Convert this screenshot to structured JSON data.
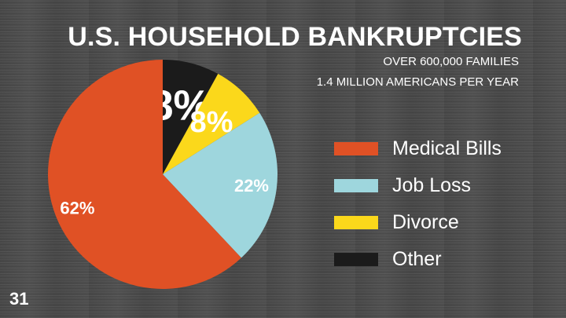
{
  "title": "U.S. HOUSEHOLD BANKRUPTCIES",
  "subtitle_lines": [
    "OVER 600,000 FAMILIES",
    "1.4 MILLION AMERICANS PER YEAR"
  ],
  "page_number": "31",
  "chart_data": {
    "type": "pie",
    "title": "U.S. HOUSEHOLD BANKRUPTCIES",
    "slices": [
      {
        "label": "Medical Bills",
        "value": 62,
        "data_label": "62%",
        "color": "#e05125"
      },
      {
        "label": "Job Loss",
        "value": 22,
        "data_label": "22%",
        "color": "#9ed6dd"
      },
      {
        "label": "Divorce",
        "value": 8,
        "data_label": "8%",
        "color": "#fbd81b"
      },
      {
        "label": "Other",
        "value": 8,
        "data_label": "8%",
        "color": "#1b1b1b"
      }
    ],
    "legend_position": "right"
  }
}
